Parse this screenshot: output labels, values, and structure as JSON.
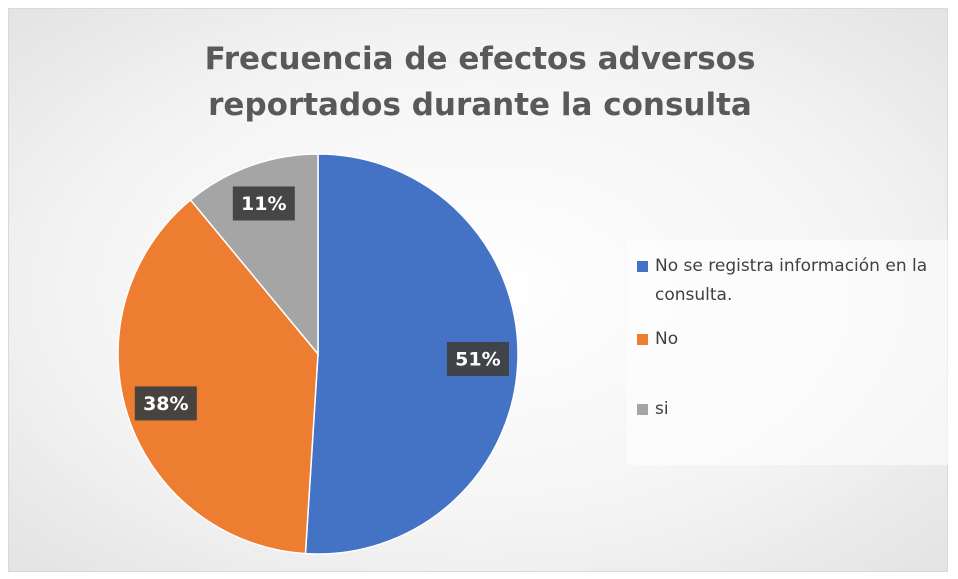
{
  "chart_data": {
    "type": "pie",
    "title": "Frecuencia de efectos adversos reportados durante la consulta",
    "categories": [
      "No se registra información en la consulta.",
      "No",
      "si"
    ],
    "values": [
      51,
      38,
      11
    ],
    "value_labels": [
      "51%",
      "38%",
      "11%"
    ],
    "colors": [
      "#4472c4",
      "#ed7d31",
      "#a5a5a5"
    ],
    "legend": "right"
  }
}
